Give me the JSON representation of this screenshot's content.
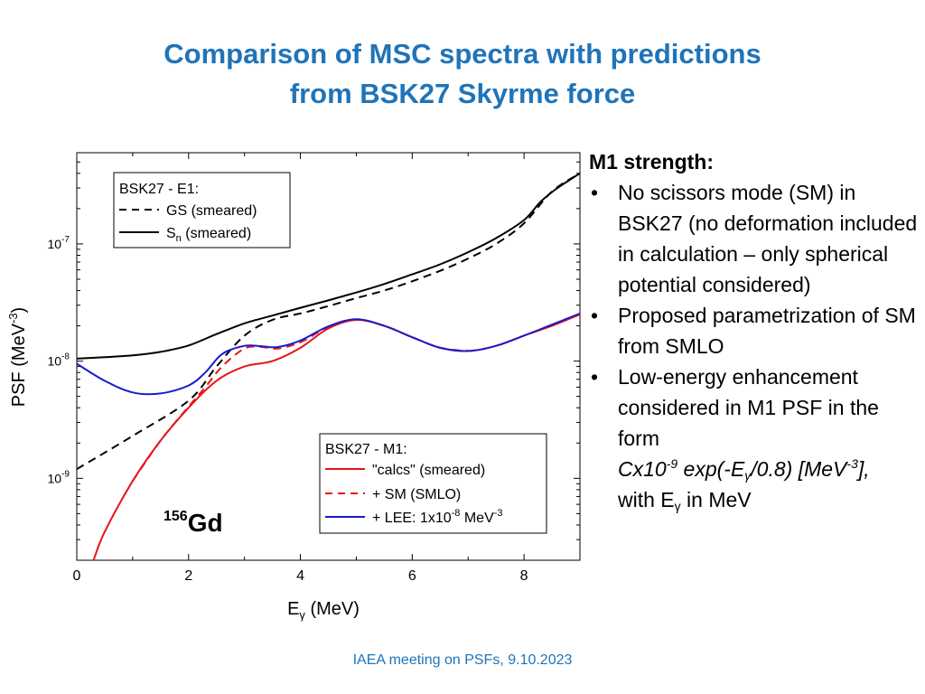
{
  "title": {
    "line1": "Comparison of MSC spectra with predictions",
    "line2": "from BSK27 Skyrme force"
  },
  "panel": {
    "heading": "M1 strength:",
    "bullets": [
      "No scissors mode (SM) in BSK27 (no deformation included in calculation – only spherical potential considered)",
      "Proposed parametrization of SM from SMLO",
      "Low-energy enhancement considered in M1 PSF in the form"
    ],
    "formula": {
      "coef": "Cx10",
      "coef_exp": "-9",
      "mid": " exp(-E",
      "sub": "γ",
      "tail": "/0.8) [MeV",
      "unit_exp": "-3",
      "end": "],"
    },
    "with_prefix": "with E",
    "with_sub": "γ",
    "with_suffix": " in MeV"
  },
  "footer": "IAEA meeting on PSFs, 9.10.2023",
  "colors": {
    "title": "#1f74b9",
    "red": "#e8141b",
    "blue": "#1b1bcc",
    "black": "#000000"
  },
  "chart_data": {
    "type": "line",
    "yscale": "log",
    "xlabel_main": "E",
    "xlabel_sub": "γ",
    "xlabel_tail": " (MeV)",
    "ylabel_main": "PSF (MeV",
    "ylabel_sup": "-3",
    "ylabel_tail": ")",
    "xlim": [
      0,
      9
    ],
    "ylim": [
      2e-10,
      6e-07
    ],
    "xticks": [
      0,
      2,
      4,
      6,
      8
    ],
    "ytick_labels": [
      {
        "value": 1e-09,
        "base": "10",
        "exp": "-9"
      },
      {
        "value": 1e-08,
        "base": "10",
        "exp": "-8"
      },
      {
        "value": 1e-07,
        "base": "10",
        "exp": "-7"
      }
    ],
    "nucleus_mass": "156",
    "nucleus_symbol": "Gd",
    "legend_e1": {
      "title": "BSK27 - E1:",
      "entries": [
        {
          "label": "GS (smeared)",
          "style": "dashed",
          "color": "#000000"
        },
        {
          "label_main": "S",
          "label_sub": "n",
          "label_tail": " (smeared)",
          "style": "solid",
          "color": "#000000"
        }
      ]
    },
    "legend_m1": {
      "title": "BSK27 - M1:",
      "entries": [
        {
          "label": "\"calcs\" (smeared)",
          "style": "solid",
          "color": "#e8141b"
        },
        {
          "label": "+ SM (SMLO)",
          "style": "dashed",
          "color": "#e8141b"
        },
        {
          "label_main": "+ LEE: 1x10",
          "label_sup": "-8",
          "label_tail": " MeV",
          "label_sup2": "-3",
          "style": "solid",
          "color": "#1b1bcc"
        }
      ]
    },
    "series": [
      {
        "name": "E1 GS (smeared)",
        "style": "dashed",
        "color": "#000000",
        "x": [
          0,
          1,
          2,
          2.5,
          3,
          3.5,
          4,
          4.5,
          5,
          5.5,
          6,
          6.5,
          7,
          7.5,
          8,
          8.5,
          9
        ],
        "y": [
          1.2e-09,
          2.3e-09,
          4.6e-09,
          9e-09,
          1.65e-08,
          2.25e-08,
          2.55e-08,
          2.95e-08,
          3.45e-08,
          4e-08,
          4.8e-08,
          5.9e-08,
          7.5e-08,
          1e-07,
          1.5e-07,
          2.8e-07,
          4e-07
        ]
      },
      {
        "name": "E1 Sn (smeared)",
        "style": "solid",
        "color": "#000000",
        "x": [
          0,
          0.5,
          1,
          1.5,
          2,
          2.5,
          3,
          3.5,
          4,
          4.5,
          5,
          5.5,
          6,
          6.5,
          7,
          7.5,
          8,
          8.3,
          8.6,
          9
        ],
        "y": [
          1.05e-08,
          1.08e-08,
          1.12e-08,
          1.2e-08,
          1.36e-08,
          1.7e-08,
          2.1e-08,
          2.45e-08,
          2.85e-08,
          3.3e-08,
          3.85e-08,
          4.55e-08,
          5.5e-08,
          6.7e-08,
          8.5e-08,
          1.12e-07,
          1.6e-07,
          2.3e-07,
          3e-07,
          4e-07
        ]
      },
      {
        "name": "M1 \"calcs\" (smeared)",
        "style": "solid",
        "color": "#e8141b",
        "x": [
          0.3,
          0.5,
          1,
          1.5,
          2,
          2.5,
          3,
          3.5,
          4,
          4.5,
          5,
          5.5,
          6,
          6.5,
          7,
          7.5,
          8,
          8.5,
          9
        ],
        "y": [
          2e-10,
          3.5e-10,
          9.5e-10,
          2.1e-09,
          4e-09,
          6.8e-09,
          9e-09,
          1e-08,
          1.3e-08,
          1.9e-08,
          2.25e-08,
          2e-08,
          1.6e-08,
          1.3e-08,
          1.22e-08,
          1.35e-08,
          1.65e-08,
          2e-08,
          2.5e-08
        ]
      },
      {
        "name": "M1 + SM (SMLO)",
        "style": "dashed",
        "color": "#e8141b",
        "x": [
          1,
          1.5,
          2,
          2.3,
          2.6,
          3,
          3.3,
          3.6,
          4,
          4.5,
          5,
          5.5,
          6,
          6.5,
          7
        ],
        "y": [
          9.5e-10,
          2.1e-09,
          4.1e-09,
          6e-09,
          9e-09,
          1.28e-08,
          1.32e-08,
          1.28e-08,
          1.45e-08,
          1.95e-08,
          2.25e-08,
          2e-08,
          1.6e-08,
          1.3e-08,
          1.22e-08
        ]
      },
      {
        "name": "M1 + LEE: 1x10^-8 MeV^-3",
        "style": "solid",
        "color": "#1b1bcc",
        "x": [
          0,
          0.5,
          1,
          1.5,
          2,
          2.3,
          2.6,
          3,
          3.3,
          3.6,
          4,
          4.5,
          5,
          5.5,
          6,
          6.5,
          7,
          7.5,
          8,
          8.5,
          9
        ],
        "y": [
          9.5e-09,
          6.8e-09,
          5.4e-09,
          5.3e-09,
          6.2e-09,
          8e-09,
          1.15e-08,
          1.35e-08,
          1.34e-08,
          1.32e-08,
          1.5e-08,
          1.98e-08,
          2.28e-08,
          2e-08,
          1.6e-08,
          1.3e-08,
          1.22e-08,
          1.35e-08,
          1.65e-08,
          2.05e-08,
          2.55e-08
        ]
      }
    ]
  }
}
